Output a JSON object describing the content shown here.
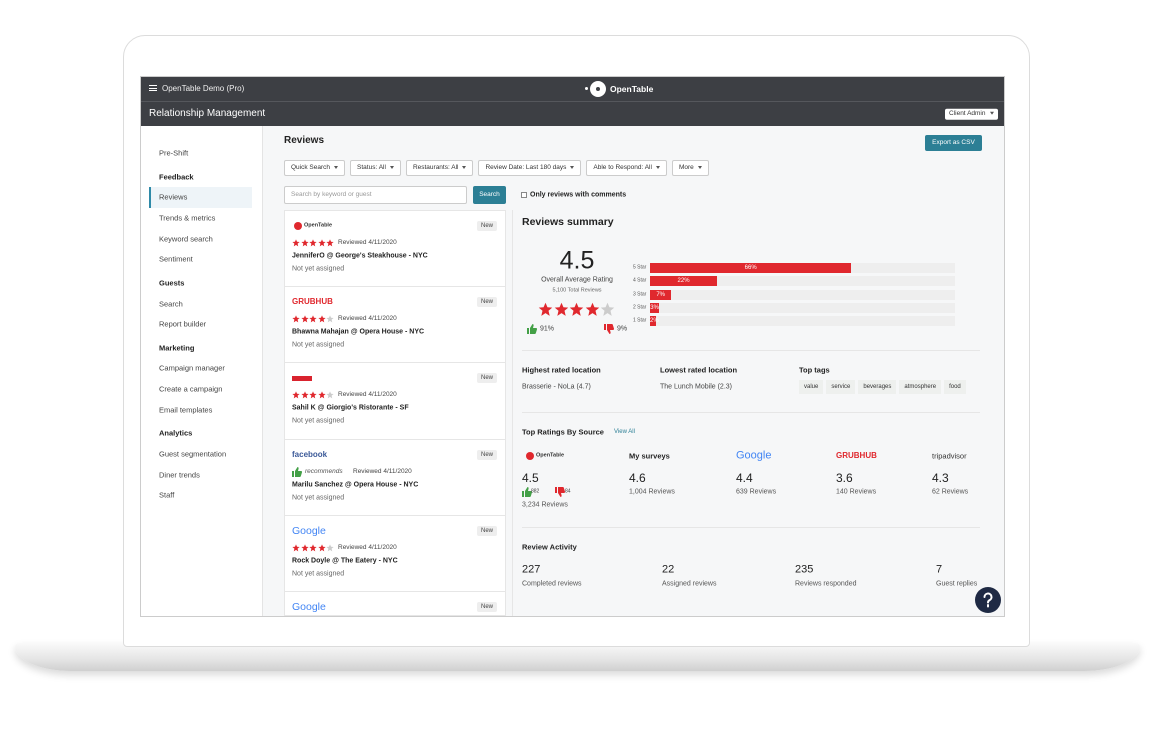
{
  "topbar": {
    "account": "OpenTable Demo (Pro)",
    "brand": "OpenTable",
    "section": "Relationship Management",
    "user_menu": "Client Admin"
  },
  "sidebar": {
    "top": "Pre-Shift",
    "groups": [
      {
        "heading": "Feedback",
        "items": [
          "Reviews",
          "Trends & metrics",
          "Keyword search",
          "Sentiment"
        ]
      },
      {
        "heading": "Guests",
        "items": [
          "Search",
          "Report builder"
        ]
      },
      {
        "heading": "Marketing",
        "items": [
          "Campaign manager",
          "Create a campaign",
          "Email templates"
        ]
      },
      {
        "heading": "Analytics",
        "items": [
          "Guest segmentation",
          "Diner trends",
          "Staff"
        ]
      }
    ]
  },
  "reviews": {
    "title": "Reviews",
    "export": "Export as CSV",
    "filters": [
      "Quick Search",
      "Status: All",
      "Restaurants: All",
      "Review Date: Last 180 days",
      "Able to Respond: All",
      "More"
    ],
    "search_placeholder": "Search by keyword or guest",
    "search_button": "Search",
    "checkbox": "Only reviews with comments",
    "list": [
      {
        "source": "OpenTable",
        "stars": 5,
        "reviewed": "Reviewed 4/11/2020",
        "guest": "JenniferO @ George's Steakhouse - NYC",
        "status": "Not yet assigned",
        "badge": "New"
      },
      {
        "source": "GRUBHUB",
        "stars": 4,
        "reviewed": "Reviewed 4/11/2020",
        "guest": "Bhawna Mahajan @ Opera House - NYC",
        "status": "Not yet assigned",
        "badge": "New"
      },
      {
        "stars": 4,
        "reviewed": "Reviewed 4/11/2020",
        "guest": "Sahil K @ Giorgio's Ristorante - SF",
        "status": "Not yet assigned",
        "badge": "New"
      },
      {
        "source": "facebook",
        "recommendation": "recommends",
        "reviewed": "Reviewed 4/11/2020",
        "guest": "Marilu Sanchez @ Opera House - NYC",
        "status": "Not yet assigned",
        "badge": "New"
      },
      {
        "source": "Google",
        "stars": 4,
        "reviewed": "Reviewed 4/11/2020",
        "guest": "Rock Doyle @ The Eatery - NYC",
        "status": "Not yet assigned",
        "badge": "New"
      },
      {
        "source": "Google",
        "badge": "New"
      }
    ]
  },
  "summary": {
    "title": "Reviews summary",
    "average": 4.5,
    "average_label": "Overall Average Rating",
    "total": "5,100 Total Reviews",
    "thumbs_up": "91%",
    "thumbs_down": "9%",
    "bars": [
      {
        "label": "5 Star",
        "value": 66,
        "value_label": "66%"
      },
      {
        "label": "4 Star",
        "value": 22,
        "value_label": "22%"
      },
      {
        "label": "3 Star",
        "value": 7,
        "value_label": "7%"
      },
      {
        "label": "2 Star",
        "value": 3,
        "value_label": "3%"
      },
      {
        "label": "1 Star",
        "value": 2,
        "value_label": "2%"
      }
    ],
    "highest_title": "Highest rated location",
    "highest": "Brasserie - NoLa (4.7)",
    "lowest_title": "Lowest rated location",
    "lowest": "The Lunch Mobile (2.3)",
    "tags_title": "Top tags",
    "tags": [
      "value",
      "service",
      "beverages",
      "atmosphere",
      "food"
    ]
  },
  "sources": {
    "title": "Top Ratings By Source",
    "view_all": "View All",
    "items": [
      {
        "name": "OpenTable",
        "rating": 4.5,
        "up": "882",
        "down": "84",
        "reviews": "3,234 Reviews"
      },
      {
        "name": "My surveys",
        "rating": 4.6,
        "reviews": "1,004 Reviews"
      },
      {
        "name": "Google",
        "rating": 4.4,
        "reviews": "639 Reviews"
      },
      {
        "name": "GRUBHUB",
        "rating": 3.6,
        "reviews": "140 Reviews"
      },
      {
        "name": "tripadvisor",
        "rating": 4.3,
        "reviews": "62 Reviews"
      }
    ]
  },
  "activity": {
    "title": "Review Activity",
    "items": [
      {
        "value": 227,
        "label": "Completed reviews"
      },
      {
        "value": 22,
        "label": "Assigned reviews"
      },
      {
        "value": 235,
        "label": "Reviews responded"
      },
      {
        "value": 7,
        "label": "Guest replies"
      }
    ]
  }
}
